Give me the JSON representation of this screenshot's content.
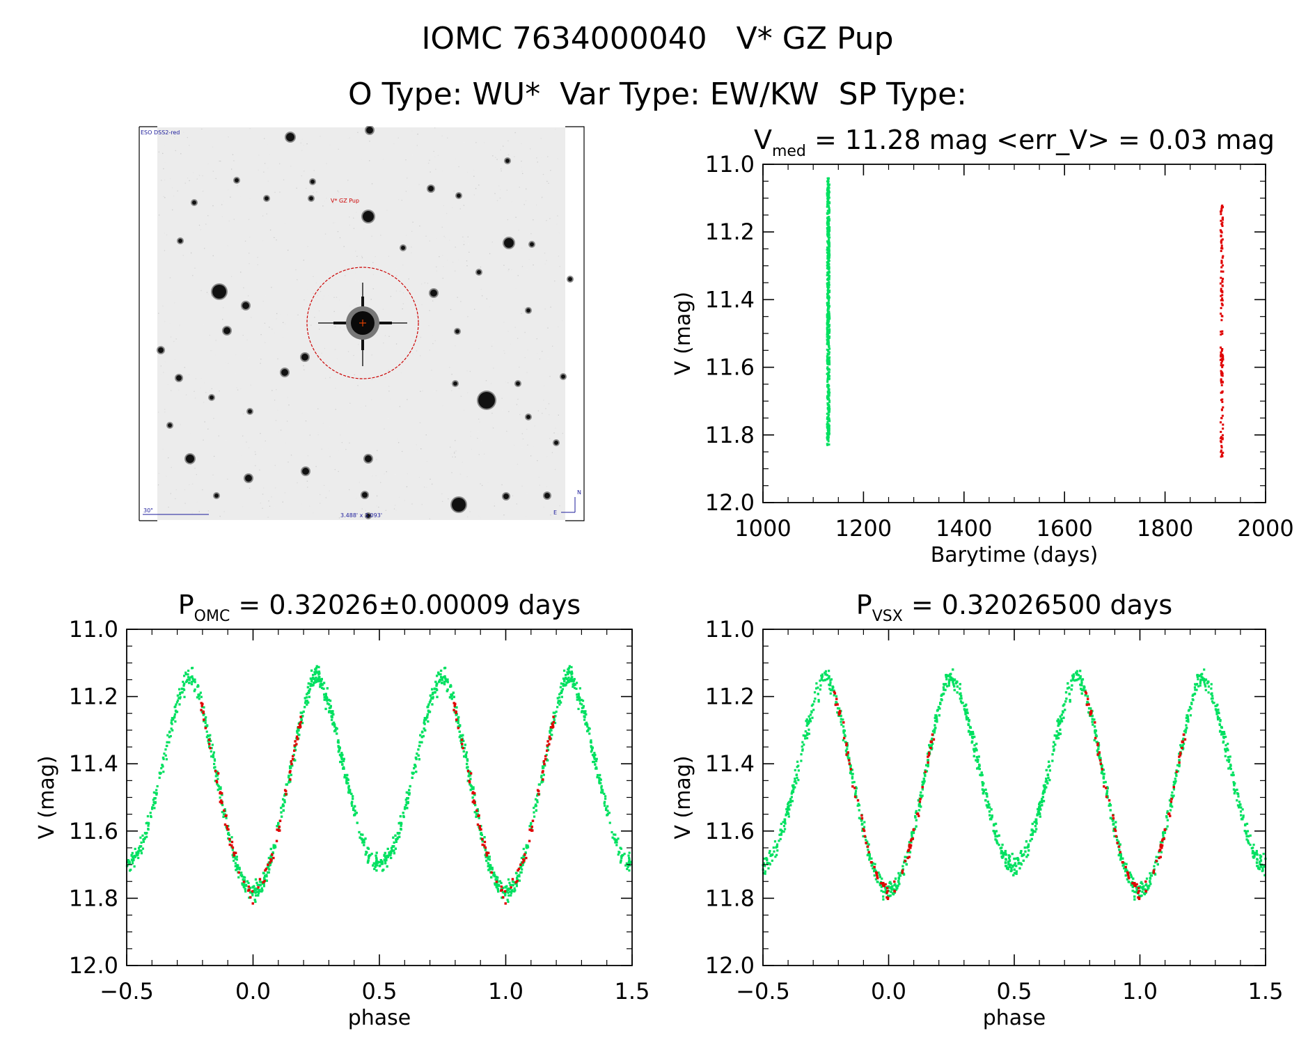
{
  "header": {
    "object_id": "IOMC 7634000040",
    "object_name": "V* GZ Pup",
    "info_line": "O Type: WU*  Var Type: EW/KW  SP Type:"
  },
  "sky_image": {
    "survey_label": "ESO DSS2-red",
    "target_label": "V* GZ Pup",
    "scale_label": "30\"",
    "size_label": "3.488' x 3.093'",
    "north_label": "N",
    "east_label": "E"
  },
  "colors": {
    "green": "#00e060",
    "red": "#e00000",
    "marker_circle": "#cc0000",
    "sky_background": "#ececec"
  },
  "chart_data": [
    {
      "id": "lightcurve",
      "type": "scatter",
      "title": {
        "main": "V",
        "sub": "med",
        "rest": " = 11.28 mag <err_V> = 0.03 mag"
      },
      "xlabel": "Barytime (days)",
      "ylabel": "V (mag)",
      "xlim": [
        1000,
        2000
      ],
      "ylim": [
        12.0,
        11.0
      ],
      "y_inverted": true,
      "xticks": [
        "1000",
        "1200",
        "1400",
        "1600",
        "1800",
        "2000"
      ],
      "yticks": [
        "11.0",
        "11.2",
        "11.4",
        "11.6",
        "11.8",
        "12.0"
      ],
      "series": [
        {
          "color": "green",
          "x": 1130,
          "y_range": [
            11.04,
            11.83
          ]
        },
        {
          "color": "red",
          "x": 1913,
          "y_range": [
            11.12,
            11.87
          ]
        }
      ]
    },
    {
      "id": "phase_omc",
      "type": "scatter",
      "title": {
        "main": "P",
        "sub": "OMC",
        "rest": " = 0.32026±0.00009 days"
      },
      "xlabel": "phase",
      "ylabel": "V (mag)",
      "xlim": [
        -0.5,
        1.5
      ],
      "ylim": [
        12.0,
        11.0
      ],
      "y_inverted": true,
      "xticks": [
        "−0.5",
        "0.0",
        "0.5",
        "1.0",
        "1.5"
      ],
      "yticks": [
        "11.0",
        "11.2",
        "11.4",
        "11.6",
        "11.8",
        "12.0"
      ],
      "curve": {
        "max_mag": 11.14,
        "primary_min_mag": 11.78,
        "secondary_min_mag": 11.7,
        "primary_min_phase": 0.0,
        "secondary_min_phase": 0.5
      }
    },
    {
      "id": "phase_vsx",
      "type": "scatter",
      "title": {
        "main": "P",
        "sub": "VSX",
        "rest": " = 0.32026500 days"
      },
      "xlabel": "phase",
      "ylabel": "V (mag)",
      "xlim": [
        -0.5,
        1.5
      ],
      "ylim": [
        12.0,
        11.0
      ],
      "y_inverted": true,
      "xticks": [
        "−0.5",
        "0.0",
        "0.5",
        "1.0",
        "1.5"
      ],
      "yticks": [
        "11.0",
        "11.2",
        "11.4",
        "11.6",
        "11.8",
        "12.0"
      ],
      "curve": {
        "max_mag": 11.14,
        "primary_min_mag": 11.78,
        "secondary_min_mag": 11.7,
        "primary_min_phase": 0.0,
        "secondary_min_phase": 0.5
      }
    }
  ]
}
